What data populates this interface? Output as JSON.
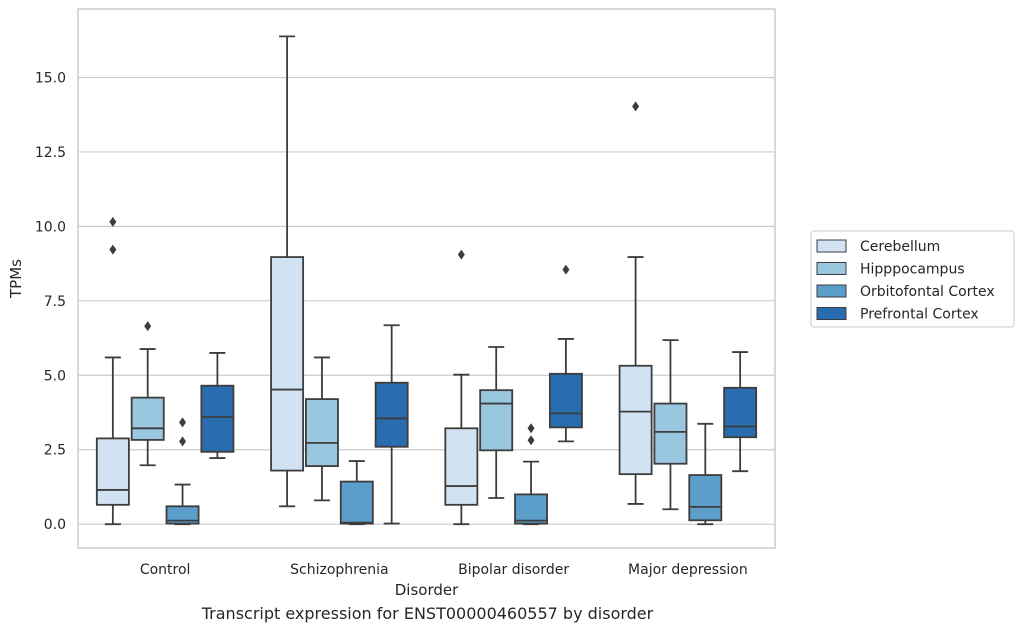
{
  "chart_data": {
    "type": "box",
    "xlabel": "Disorder",
    "ylabel": "TPMs",
    "caption": "Transcript expression for ENST00000460557 by disorder",
    "categories": [
      "Control",
      "Schizophrenia",
      "Bipolar disorder",
      "Major depression"
    ],
    "ylim": [
      -0.8,
      17.3
    ],
    "yticks": [
      "0.0",
      "2.5",
      "5.0",
      "7.5",
      "10.0",
      "12.5",
      "15.0"
    ],
    "grid": "horizontal",
    "legend_position": "right",
    "series": [
      {
        "name": "Cerebellum",
        "color": "#d1e2f2",
        "boxes": [
          {
            "min": 0.0,
            "q1": 0.65,
            "median": 1.15,
            "q3": 2.88,
            "max": 5.6,
            "outliers": [
              9.22,
              10.15
            ]
          },
          {
            "min": 0.6,
            "q1": 1.8,
            "median": 4.52,
            "q3": 8.97,
            "max": 16.38,
            "outliers": []
          },
          {
            "min": 0.0,
            "q1": 0.65,
            "median": 1.28,
            "q3": 3.22,
            "max": 5.02,
            "outliers": [
              9.05
            ]
          },
          {
            "min": 0.68,
            "q1": 1.68,
            "median": 3.78,
            "q3": 5.32,
            "max": 8.97,
            "outliers": [
              14.03
            ]
          }
        ]
      },
      {
        "name": "Hipppocampus",
        "color": "#9ac7e0",
        "boxes": [
          {
            "min": 1.98,
            "q1": 2.83,
            "median": 3.22,
            "q3": 4.25,
            "max": 5.88,
            "outliers": [
              6.65
            ]
          },
          {
            "min": 0.8,
            "q1": 1.95,
            "median": 2.73,
            "q3": 4.2,
            "max": 5.6,
            "outliers": []
          },
          {
            "min": 0.88,
            "q1": 2.48,
            "median": 4.05,
            "q3": 4.5,
            "max": 5.95,
            "outliers": []
          },
          {
            "min": 0.5,
            "q1": 2.03,
            "median": 3.1,
            "q3": 4.05,
            "max": 6.18,
            "outliers": []
          }
        ]
      },
      {
        "name": "Orbitofontal Cortex",
        "color": "#5b9ec9",
        "boxes": [
          {
            "min": 0.0,
            "q1": 0.02,
            "median": 0.12,
            "q3": 0.6,
            "max": 1.33,
            "outliers": [
              2.78,
              3.42
            ]
          },
          {
            "min": 0.0,
            "q1": 0.02,
            "median": 0.05,
            "q3": 1.43,
            "max": 2.12,
            "outliers": []
          },
          {
            "min": 0.0,
            "q1": 0.02,
            "median": 0.12,
            "q3": 1.0,
            "max": 2.1,
            "outliers": [
              2.82,
              3.22
            ]
          },
          {
            "min": 0.0,
            "q1": 0.13,
            "median": 0.58,
            "q3": 1.65,
            "max": 3.37,
            "outliers": []
          }
        ]
      },
      {
        "name": "Prefrontal Cortex",
        "color": "#2a6cb0",
        "boxes": [
          {
            "min": 2.22,
            "q1": 2.43,
            "median": 3.6,
            "q3": 4.65,
            "max": 5.75,
            "outliers": []
          },
          {
            "min": 0.02,
            "q1": 2.6,
            "median": 3.55,
            "q3": 4.75,
            "max": 6.68,
            "outliers": []
          },
          {
            "min": 2.78,
            "q1": 3.25,
            "median": 3.72,
            "q3": 5.05,
            "max": 6.22,
            "outliers": [
              8.55
            ]
          },
          {
            "min": 1.78,
            "q1": 2.92,
            "median": 3.28,
            "q3": 4.58,
            "max": 5.78,
            "outliers": []
          }
        ]
      }
    ]
  }
}
